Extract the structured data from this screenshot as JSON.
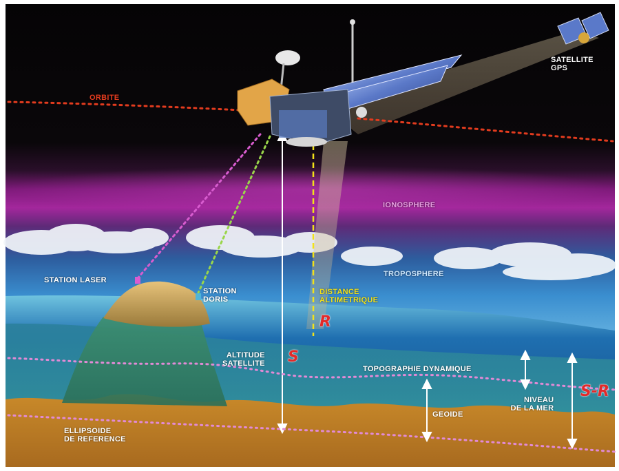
{
  "labels": {
    "orbit": "ORBITE",
    "gps_line1": "SATELLITE",
    "gps_line2": "GPS",
    "ionosphere": "IONOSPHERE",
    "troposphere": "TROPOSPHERE",
    "station_laser": "STATION LASER",
    "station_doris_line1": "STATION",
    "station_doris_line2": "DORIS",
    "distance_line1": "DISTANCE",
    "distance_line2": "ALTIMETRIQUE",
    "altitude_line1": "ALTITUDE",
    "altitude_line2": "SATELLITE",
    "topography": "TOPOGRAPHIE DYNAMIQUE",
    "geoid": "GEOIDE",
    "sea_level_line1": "NIVEAU",
    "sea_level_line2": "DE LA MER",
    "ellipsoid_line1": "ELLIPSOIDE",
    "ellipsoid_line2": "DE REFERENCE"
  },
  "symbols": {
    "range": "R",
    "altitude": "S",
    "difference": "S-R"
  },
  "colors": {
    "orbit_line": "#e23b1e",
    "laser_link": "#d85ccf",
    "doris_link": "#9ad64a",
    "range_line": "#f2e21a",
    "ionosphere_band": "#8a1f86",
    "symbol_red": "#e22a2a"
  }
}
